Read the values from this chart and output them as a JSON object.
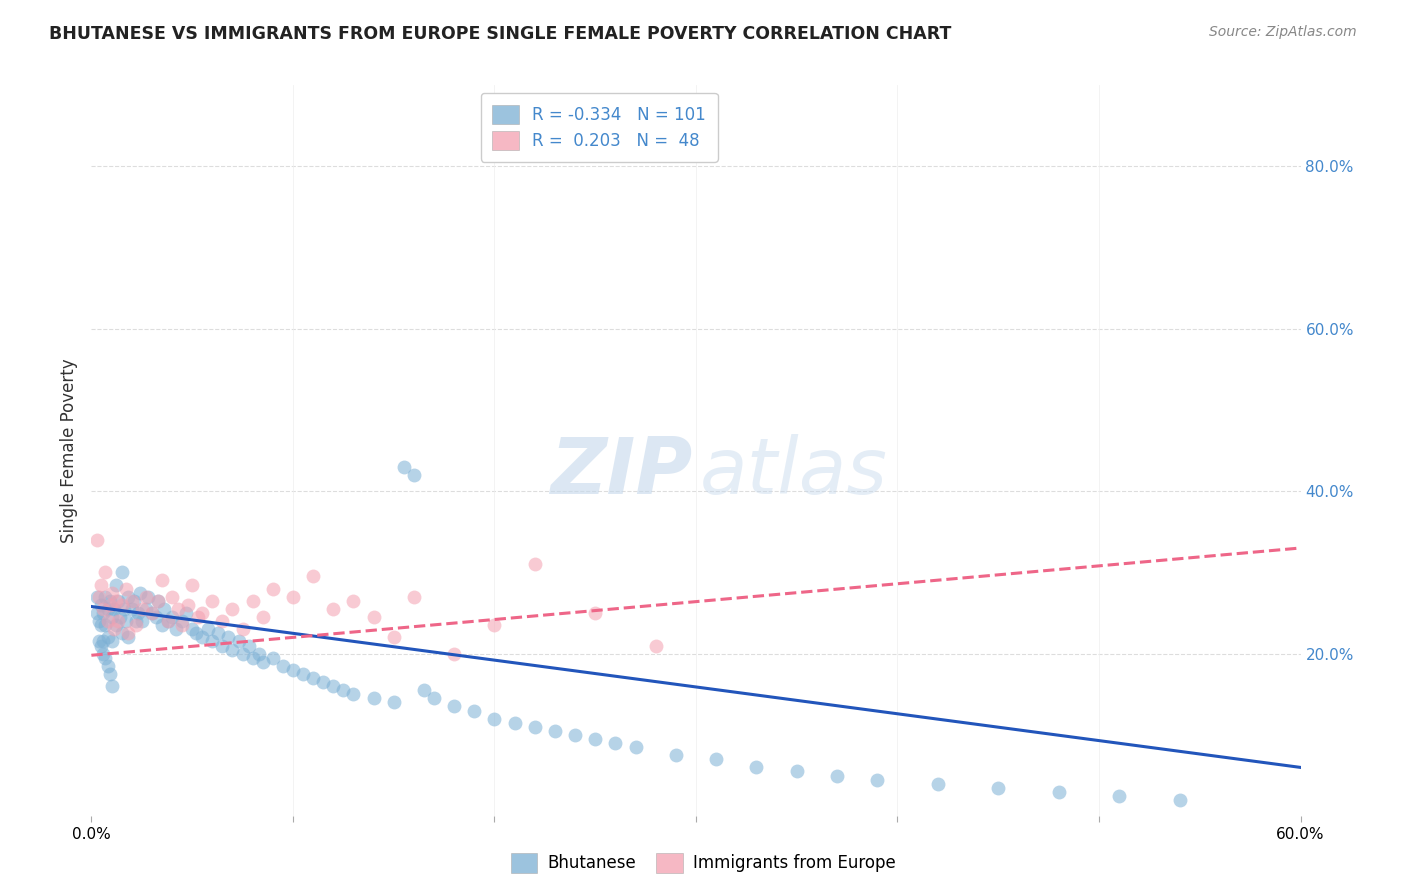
{
  "title": "BHUTANESE VS IMMIGRANTS FROM EUROPE SINGLE FEMALE POVERTY CORRELATION CHART",
  "source": "Source: ZipAtlas.com",
  "ylabel": "Single Female Poverty",
  "xlim": [
    0.0,
    0.6
  ],
  "ylim": [
    0.0,
    0.9
  ],
  "yticks": [
    0.0,
    0.2,
    0.4,
    0.6,
    0.8
  ],
  "xticks": [
    0.0,
    0.1,
    0.2,
    0.3,
    0.4,
    0.5,
    0.6
  ],
  "xtick_labels_show": [
    "0.0%",
    "60.0%"
  ],
  "ytick_labels": [
    "",
    "20.0%",
    "40.0%",
    "60.0%",
    "80.0%"
  ],
  "blue_color": "#7BAFD4",
  "pink_color": "#F4A0B0",
  "blue_line_color": "#2255BB",
  "pink_line_color": "#EE6688",
  "legend_r_blue": "-0.334",
  "legend_n_blue": "101",
  "legend_r_pink": "0.203",
  "legend_n_pink": "48",
  "legend_label_blue": "Bhutanese",
  "legend_label_pink": "Immigrants from Europe",
  "blue_scatter_x": [
    0.003,
    0.004,
    0.005,
    0.005,
    0.006,
    0.006,
    0.007,
    0.007,
    0.008,
    0.008,
    0.009,
    0.01,
    0.01,
    0.011,
    0.012,
    0.012,
    0.013,
    0.014,
    0.015,
    0.015,
    0.016,
    0.017,
    0.018,
    0.018,
    0.02,
    0.021,
    0.022,
    0.023,
    0.024,
    0.025,
    0.027,
    0.028,
    0.03,
    0.032,
    0.033,
    0.035,
    0.036,
    0.038,
    0.04,
    0.042,
    0.045,
    0.047,
    0.05,
    0.052,
    0.055,
    0.058,
    0.06,
    0.063,
    0.065,
    0.068,
    0.07,
    0.073,
    0.075,
    0.078,
    0.08,
    0.083,
    0.085,
    0.09,
    0.095,
    0.1,
    0.105,
    0.11,
    0.115,
    0.12,
    0.125,
    0.13,
    0.14,
    0.15,
    0.155,
    0.16,
    0.165,
    0.17,
    0.18,
    0.19,
    0.2,
    0.21,
    0.22,
    0.23,
    0.24,
    0.25,
    0.26,
    0.27,
    0.29,
    0.31,
    0.33,
    0.35,
    0.37,
    0.39,
    0.42,
    0.45,
    0.48,
    0.51,
    0.54,
    0.003,
    0.004,
    0.005,
    0.006,
    0.007,
    0.008,
    0.009,
    0.01
  ],
  "blue_scatter_y": [
    0.25,
    0.24,
    0.26,
    0.21,
    0.25,
    0.215,
    0.27,
    0.235,
    0.255,
    0.22,
    0.265,
    0.245,
    0.215,
    0.255,
    0.235,
    0.285,
    0.265,
    0.245,
    0.3,
    0.225,
    0.255,
    0.24,
    0.27,
    0.22,
    0.255,
    0.265,
    0.24,
    0.25,
    0.275,
    0.24,
    0.255,
    0.27,
    0.25,
    0.245,
    0.265,
    0.235,
    0.255,
    0.24,
    0.245,
    0.23,
    0.24,
    0.25,
    0.23,
    0.225,
    0.22,
    0.23,
    0.215,
    0.225,
    0.21,
    0.22,
    0.205,
    0.215,
    0.2,
    0.21,
    0.195,
    0.2,
    0.19,
    0.195,
    0.185,
    0.18,
    0.175,
    0.17,
    0.165,
    0.16,
    0.155,
    0.15,
    0.145,
    0.14,
    0.43,
    0.42,
    0.155,
    0.145,
    0.135,
    0.13,
    0.12,
    0.115,
    0.11,
    0.105,
    0.1,
    0.095,
    0.09,
    0.085,
    0.075,
    0.07,
    0.06,
    0.055,
    0.05,
    0.045,
    0.04,
    0.035,
    0.03,
    0.025,
    0.02,
    0.27,
    0.215,
    0.235,
    0.2,
    0.195,
    0.185,
    0.175,
    0.16
  ],
  "pink_scatter_x": [
    0.003,
    0.004,
    0.005,
    0.006,
    0.007,
    0.008,
    0.009,
    0.01,
    0.011,
    0.012,
    0.013,
    0.015,
    0.017,
    0.018,
    0.02,
    0.022,
    0.025,
    0.027,
    0.03,
    0.033,
    0.035,
    0.038,
    0.04,
    0.043,
    0.045,
    0.048,
    0.05,
    0.053,
    0.055,
    0.06,
    0.065,
    0.07,
    0.075,
    0.08,
    0.085,
    0.09,
    0.1,
    0.11,
    0.12,
    0.13,
    0.14,
    0.15,
    0.16,
    0.18,
    0.2,
    0.22,
    0.25,
    0.28
  ],
  "pink_scatter_y": [
    0.34,
    0.27,
    0.285,
    0.255,
    0.3,
    0.24,
    0.26,
    0.275,
    0.23,
    0.265,
    0.24,
    0.26,
    0.28,
    0.225,
    0.265,
    0.235,
    0.255,
    0.27,
    0.25,
    0.265,
    0.29,
    0.24,
    0.27,
    0.255,
    0.235,
    0.26,
    0.285,
    0.245,
    0.25,
    0.265,
    0.24,
    0.255,
    0.23,
    0.265,
    0.245,
    0.28,
    0.27,
    0.295,
    0.255,
    0.265,
    0.245,
    0.22,
    0.27,
    0.2,
    0.235,
    0.31,
    0.25,
    0.21
  ],
  "blue_trend_x": [
    0.0,
    0.6
  ],
  "blue_trend_y": [
    0.258,
    0.06
  ],
  "pink_trend_x": [
    0.0,
    0.6
  ],
  "pink_trend_y": [
    0.198,
    0.33
  ],
  "marker_size": 100,
  "marker_alpha": 0.55,
  "grid_color": "#DDDDDD",
  "title_color": "#222222",
  "axis_color": "#4488CC"
}
